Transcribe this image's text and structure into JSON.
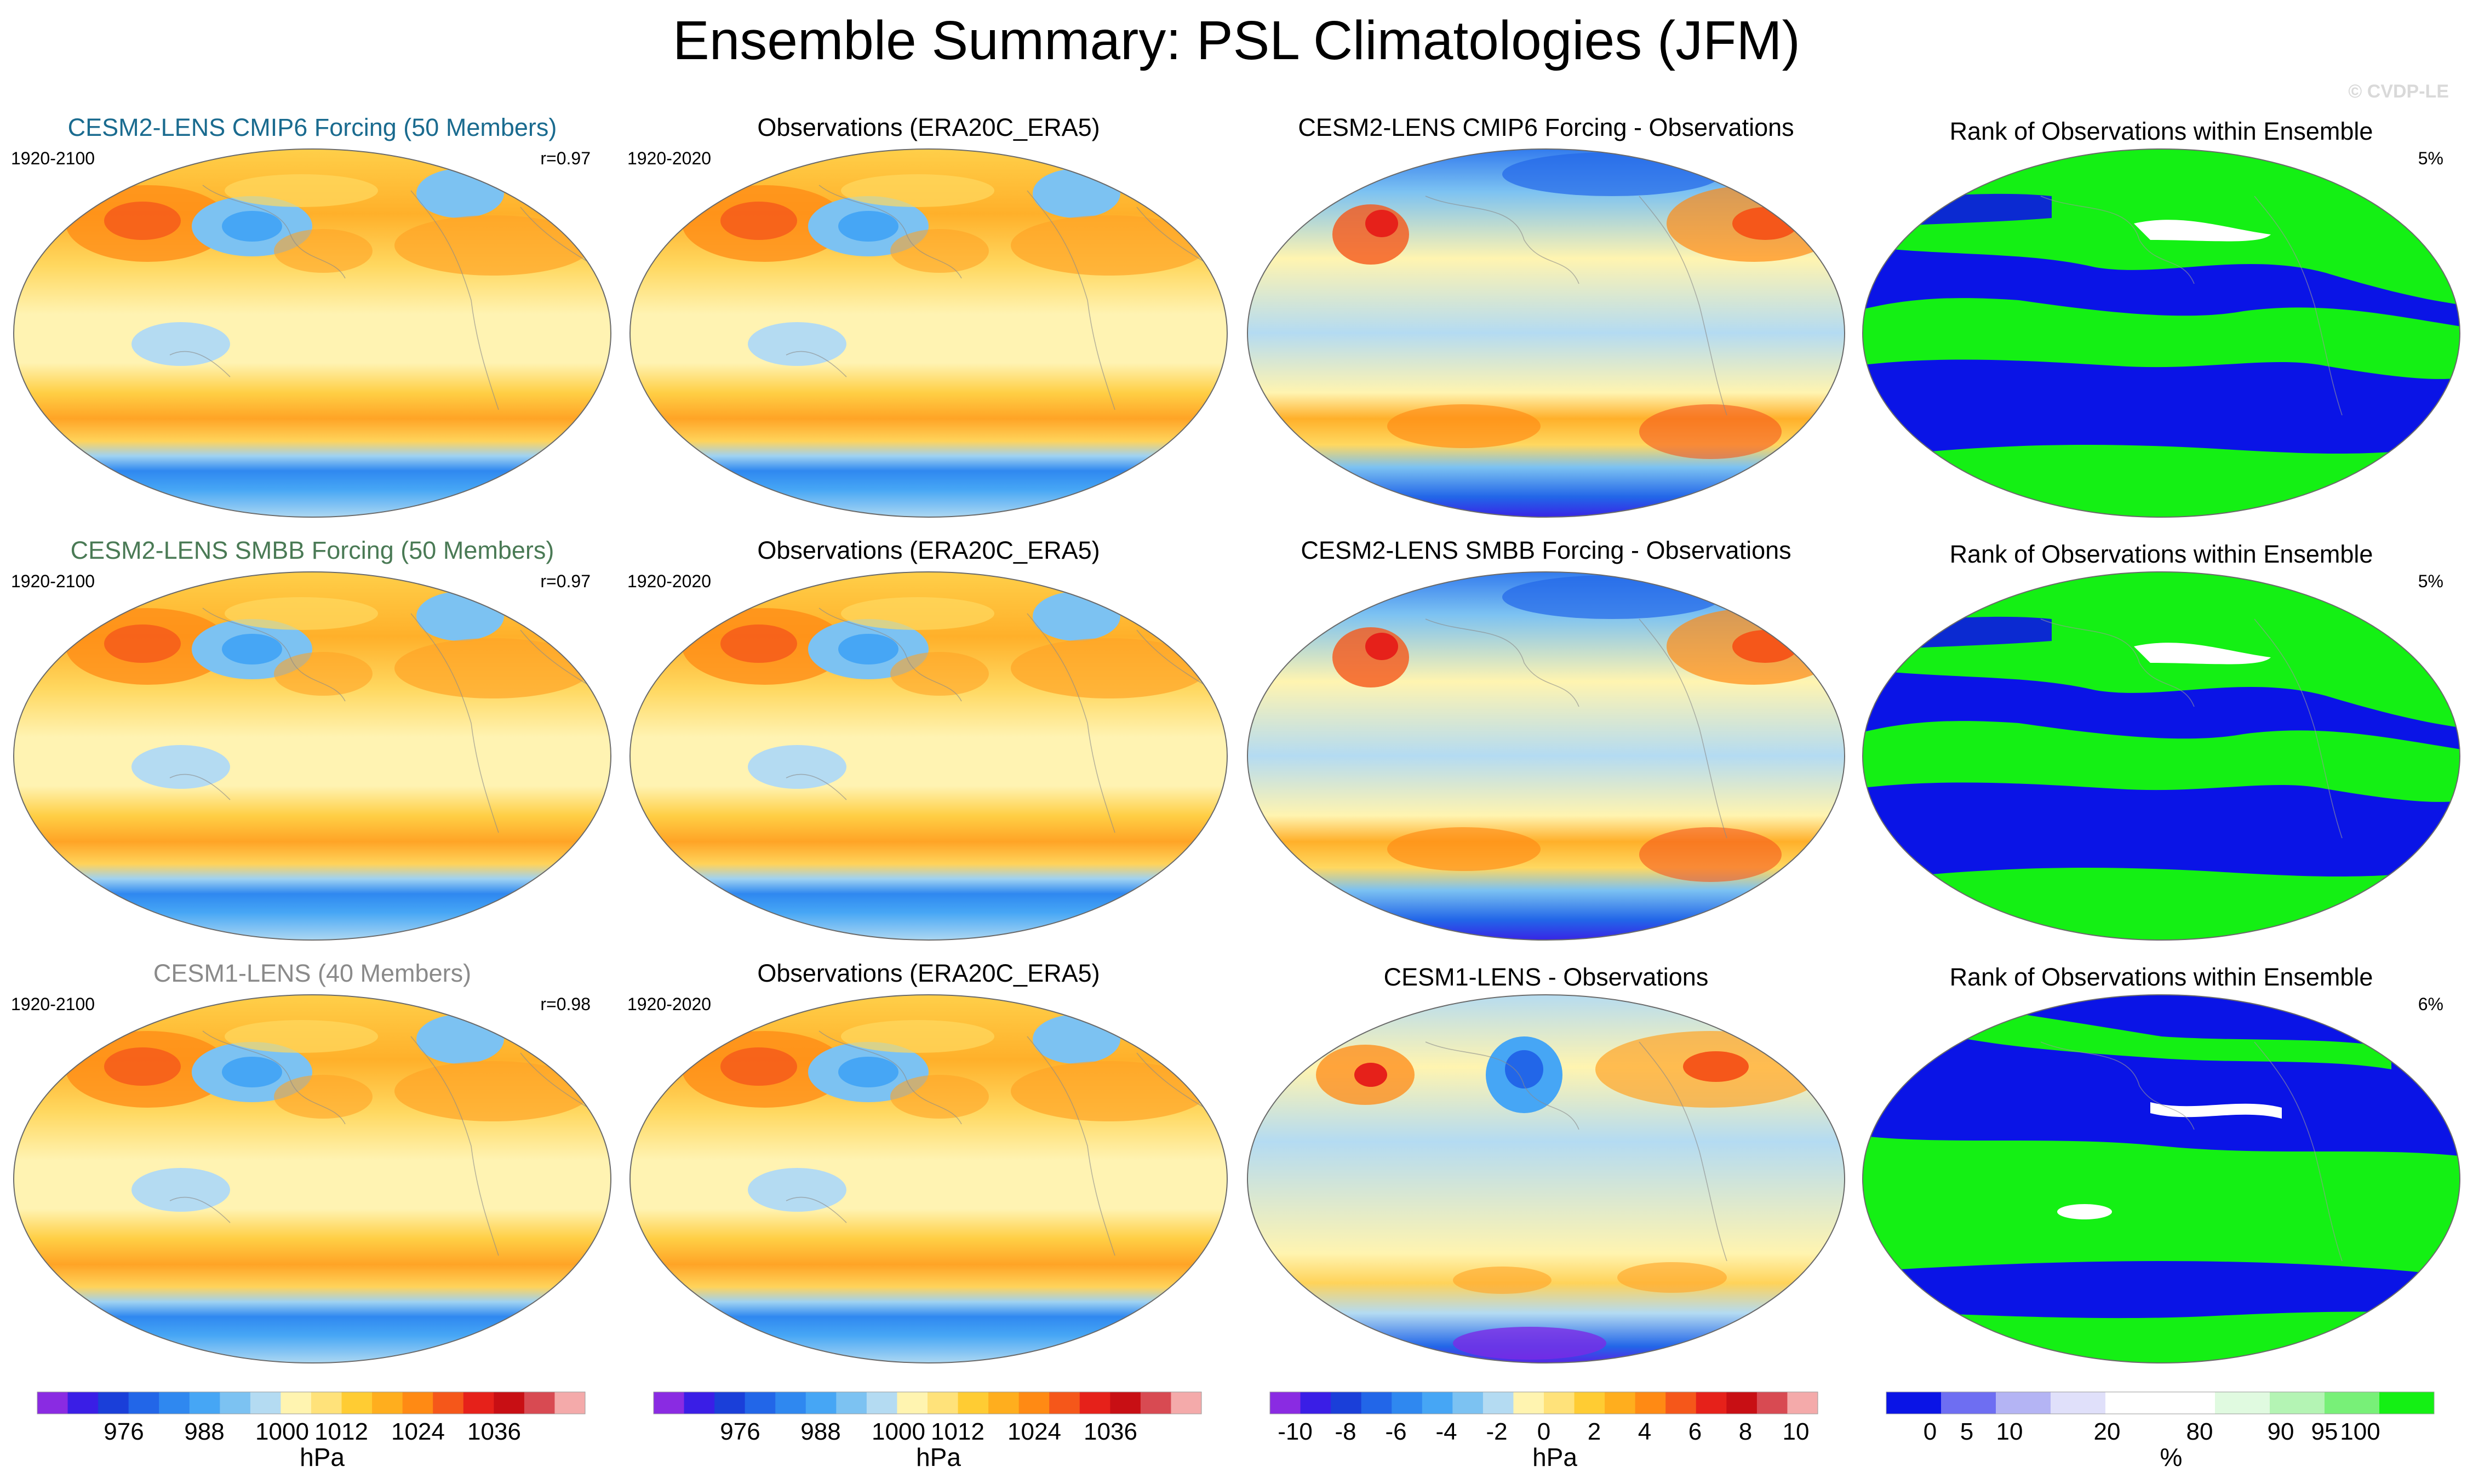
{
  "figure": {
    "title": "Ensemble Summary: PSL Climatologies (JFM)",
    "watermark": "© CVDP-LE"
  },
  "rows": [
    {
      "model": {
        "title": "CESM2-LENS CMIP6 Forcing (50 Members)",
        "title_color": "#1a6b8f",
        "years": "1920-2100",
        "corr": "r=0.97"
      },
      "obs": {
        "title": "Observations (ERA20C_ERA5)",
        "years": "1920-2020"
      },
      "diff": {
        "title": "CESM2-LENS CMIP6 Forcing - Observations"
      },
      "rank": {
        "title": "Rank of Observations within Ensemble",
        "pct": "5%"
      }
    },
    {
      "model": {
        "title": "CESM2-LENS SMBB Forcing (50 Members)",
        "title_color": "#4a7a55",
        "years": "1920-2100",
        "corr": "r=0.97"
      },
      "obs": {
        "title": "Observations (ERA20C_ERA5)",
        "years": "1920-2020"
      },
      "diff": {
        "title": "CESM2-LENS SMBB Forcing - Observations"
      },
      "rank": {
        "title": "Rank of Observations within Ensemble",
        "pct": "5%"
      }
    },
    {
      "model": {
        "title": "CESM1-LENS (40 Members)",
        "title_color": "#8a8a8a",
        "years": "1920-2100",
        "corr": "r=0.98"
      },
      "obs": {
        "title": "Observations (ERA20C_ERA5)",
        "years": "1920-2020"
      },
      "diff": {
        "title": "CESM1-LENS - Observations"
      },
      "rank": {
        "title": "Rank of Observations within Ensemble",
        "pct": "6%"
      }
    }
  ],
  "colorbars": [
    {
      "unit": "hPa",
      "labels": [
        "976",
        "988",
        "1000",
        "1012",
        "1024",
        "1036"
      ],
      "colors": [
        "#8a2be2",
        "#3a1ee6",
        "#1a3fd9",
        "#2266e8",
        "#2f88f0",
        "#46a6f5",
        "#7cc2f2",
        "#b4dbf2",
        "#fff4b0",
        "#ffe27a",
        "#ffcc33",
        "#ffae1e",
        "#ff8a14",
        "#f5571a",
        "#e6211a",
        "#c80f14",
        "#d84a52",
        "#f4aaaa"
      ]
    },
    {
      "unit": "hPa",
      "labels": [
        "976",
        "988",
        "1000",
        "1012",
        "1024",
        "1036"
      ],
      "colors": [
        "#8a2be2",
        "#3a1ee6",
        "#1a3fd9",
        "#2266e8",
        "#2f88f0",
        "#46a6f5",
        "#7cc2f2",
        "#b4dbf2",
        "#fff4b0",
        "#ffe27a",
        "#ffcc33",
        "#ffae1e",
        "#ff8a14",
        "#f5571a",
        "#e6211a",
        "#c80f14",
        "#d84a52",
        "#f4aaaa"
      ]
    },
    {
      "unit": "hPa",
      "labels": [
        "-10",
        "-8",
        "-6",
        "-4",
        "-2",
        "0",
        "2",
        "4",
        "6",
        "8",
        "10"
      ],
      "colors": [
        "#8a2be2",
        "#3a1ee6",
        "#1a3fd9",
        "#2266e8",
        "#2f88f0",
        "#46a6f5",
        "#7cc2f2",
        "#b4dbf2",
        "#fff4b0",
        "#ffe27a",
        "#ffcc33",
        "#ffae1e",
        "#ff8a14",
        "#f5571a",
        "#e6211a",
        "#c80f14",
        "#d84a52",
        "#f4aaaa"
      ]
    },
    {
      "unit": "%",
      "labels": [
        "0",
        "5",
        "10",
        "20",
        "80",
        "90",
        "95",
        "100"
      ],
      "colors": [
        "#0a14e6",
        "#6e6ef2",
        "#b4b4f4",
        "#e0e0fa",
        "#ffffff",
        "#ffffff",
        "#e0fae0",
        "#b4f4b4",
        "#78f078",
        "#14f014"
      ]
    }
  ],
  "chart_data": {
    "type": "heatmap",
    "title": "Ensemble Summary: PSL Climatologies (JFM)",
    "variable": "PSL",
    "season": "JFM",
    "units": "hPa",
    "full_field_contour_levels": [
      976,
      980,
      984,
      988,
      992,
      996,
      1000,
      1004,
      1008,
      1012,
      1016,
      1020,
      1024,
      1028,
      1032,
      1036,
      1040
    ],
    "difference_contour_levels": [
      -10,
      -8,
      -6,
      -4,
      -2,
      0,
      2,
      4,
      6,
      8,
      10
    ],
    "rank_levels_percent": [
      0,
      5,
      10,
      20,
      80,
      90,
      95,
      100
    ],
    "panels": [
      {
        "row": 1,
        "name": "CESM2-LENS CMIP6 Forcing (50 Members)",
        "years": "1920-2100",
        "pattern_correlation": 0.97,
        "rank_percent_outside": 5
      },
      {
        "row": 2,
        "name": "CESM2-LENS SMBB Forcing (50 Members)",
        "years": "1920-2100",
        "pattern_correlation": 0.97,
        "rank_percent_outside": 5
      },
      {
        "row": 3,
        "name": "CESM1-LENS (40 Members)",
        "years": "1920-2100",
        "pattern_correlation": 0.98,
        "rank_percent_outside": 6
      }
    ],
    "observations": {
      "name": "ERA20C_ERA5",
      "years": "1920-2020"
    }
  }
}
